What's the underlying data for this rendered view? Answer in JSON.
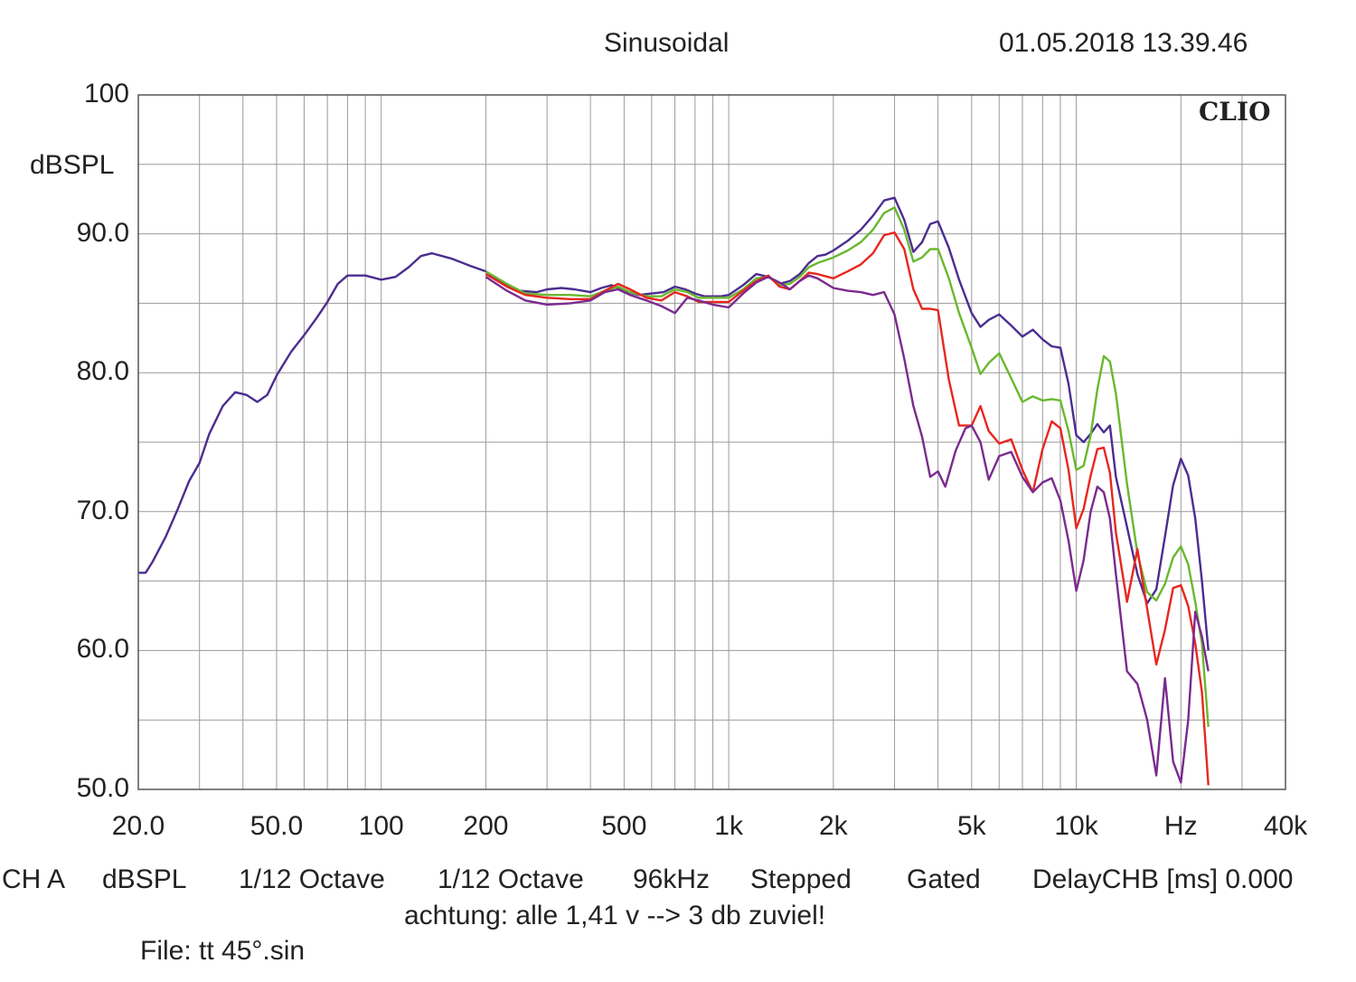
{
  "header": {
    "mode": "Sinusoidal",
    "datetime": "01.05.2018 13.39.46"
  },
  "brand": "CLIO",
  "footer": {
    "channel": "CH A",
    "unit": "dBSPL",
    "smoothing1": "1/12 Octave",
    "smoothing2": "1/12 Octave",
    "rate": "96kHz",
    "sweep": "Stepped",
    "window": "Gated",
    "delay": "DelayCHB [ms] 0.000",
    "note": "achtung: alle 1,41 v --> 3 db zuviel!",
    "file": "File: tt 45°.sin"
  },
  "chart_data": {
    "type": "line",
    "x_scale": "log",
    "xlim": [
      20,
      40000
    ],
    "ylim": [
      50,
      100
    ],
    "ylabel": "dBSPL",
    "y_ticks": [
      "100",
      "90.0",
      "80.0",
      "70.0",
      "60.0",
      "50.0"
    ],
    "x_ticks": [
      {
        "v": 20,
        "label": "20.0"
      },
      {
        "v": 50,
        "label": "50.0"
      },
      {
        "v": 100,
        "label": "100"
      },
      {
        "v": 200,
        "label": "200"
      },
      {
        "v": 500,
        "label": "500"
      },
      {
        "v": 1000,
        "label": "1k"
      },
      {
        "v": 2000,
        "label": "2k"
      },
      {
        "v": 5000,
        "label": "5k"
      },
      {
        "v": 10000,
        "label": "10k"
      },
      {
        "v": 20000,
        "label": "Hz"
      },
      {
        "v": 40000,
        "label": "40k"
      }
    ],
    "grid": true,
    "series": [
      {
        "color": "#4b2d8f",
        "points": [
          [
            20,
            65.6
          ],
          [
            21,
            65.6
          ],
          [
            22,
            66.4
          ],
          [
            24,
            68.2
          ],
          [
            26,
            70.2
          ],
          [
            28,
            72.2
          ],
          [
            30,
            73.5
          ],
          [
            32,
            75.6
          ],
          [
            35,
            77.6
          ],
          [
            38,
            78.6
          ],
          [
            41,
            78.4
          ],
          [
            44,
            77.9
          ],
          [
            47,
            78.4
          ],
          [
            50,
            79.8
          ],
          [
            55,
            81.5
          ],
          [
            60,
            82.7
          ],
          [
            65,
            83.9
          ],
          [
            70,
            85.1
          ],
          [
            75,
            86.4
          ],
          [
            80,
            87.0
          ],
          [
            90,
            87.0
          ],
          [
            100,
            86.7
          ],
          [
            110,
            86.9
          ],
          [
            120,
            87.6
          ],
          [
            130,
            88.4
          ],
          [
            140,
            88.6
          ],
          [
            160,
            88.2
          ],
          [
            180,
            87.7
          ],
          [
            200,
            87.3
          ],
          [
            220,
            86.6
          ],
          [
            250,
            85.9
          ],
          [
            280,
            85.8
          ],
          [
            300,
            86.0
          ],
          [
            330,
            86.1
          ],
          [
            360,
            86.0
          ],
          [
            400,
            85.8
          ],
          [
            430,
            86.1
          ],
          [
            460,
            86.3
          ],
          [
            500,
            85.9
          ],
          [
            550,
            85.6
          ],
          [
            600,
            85.7
          ],
          [
            650,
            85.8
          ],
          [
            700,
            86.2
          ],
          [
            750,
            86.0
          ],
          [
            800,
            85.7
          ],
          [
            850,
            85.5
          ],
          [
            900,
            85.5
          ],
          [
            950,
            85.5
          ],
          [
            1000,
            85.6
          ],
          [
            1100,
            86.3
          ],
          [
            1200,
            87.1
          ],
          [
            1300,
            86.9
          ],
          [
            1400,
            86.4
          ],
          [
            1500,
            86.6
          ],
          [
            1600,
            87.1
          ],
          [
            1700,
            87.9
          ],
          [
            1800,
            88.4
          ],
          [
            1900,
            88.5
          ],
          [
            2000,
            88.8
          ],
          [
            2200,
            89.5
          ],
          [
            2400,
            90.3
          ],
          [
            2600,
            91.3
          ],
          [
            2800,
            92.4
          ],
          [
            3000,
            92.6
          ],
          [
            3200,
            91.0
          ],
          [
            3400,
            88.7
          ],
          [
            3600,
            89.4
          ],
          [
            3800,
            90.7
          ],
          [
            4000,
            90.9
          ],
          [
            4300,
            89.0
          ],
          [
            4600,
            86.7
          ],
          [
            5000,
            84.3
          ],
          [
            5300,
            83.3
          ],
          [
            5600,
            83.8
          ],
          [
            6000,
            84.2
          ],
          [
            6500,
            83.4
          ],
          [
            7000,
            82.6
          ],
          [
            7500,
            83.1
          ],
          [
            8000,
            82.4
          ],
          [
            8500,
            81.9
          ],
          [
            9000,
            81.8
          ],
          [
            9500,
            79.2
          ],
          [
            10000,
            75.5
          ],
          [
            10500,
            75.0
          ],
          [
            11000,
            75.6
          ],
          [
            11500,
            76.3
          ],
          [
            12000,
            75.7
          ],
          [
            12500,
            76.2
          ],
          [
            13000,
            72.5
          ],
          [
            14000,
            68.9
          ],
          [
            15000,
            65.5
          ],
          [
            16000,
            63.4
          ],
          [
            17000,
            64.4
          ],
          [
            18000,
            68.2
          ],
          [
            19000,
            71.9
          ],
          [
            20000,
            73.8
          ],
          [
            21000,
            72.6
          ],
          [
            22000,
            69.5
          ],
          [
            23000,
            65.0
          ],
          [
            24000,
            60.0
          ]
        ]
      },
      {
        "color": "#6ab82f",
        "points": [
          [
            200,
            87.3
          ],
          [
            230,
            86.4
          ],
          [
            260,
            85.7
          ],
          [
            300,
            85.6
          ],
          [
            350,
            85.6
          ],
          [
            400,
            85.5
          ],
          [
            440,
            85.9
          ],
          [
            480,
            86.2
          ],
          [
            520,
            85.8
          ],
          [
            580,
            85.5
          ],
          [
            640,
            85.5
          ],
          [
            700,
            86.0
          ],
          [
            760,
            85.8
          ],
          [
            820,
            85.4
          ],
          [
            900,
            85.4
          ],
          [
            1000,
            85.4
          ],
          [
            1100,
            86.0
          ],
          [
            1200,
            86.8
          ],
          [
            1300,
            86.9
          ],
          [
            1400,
            86.3
          ],
          [
            1500,
            86.4
          ],
          [
            1600,
            86.9
          ],
          [
            1700,
            87.6
          ],
          [
            1800,
            87.9
          ],
          [
            2000,
            88.3
          ],
          [
            2200,
            88.8
          ],
          [
            2400,
            89.4
          ],
          [
            2600,
            90.3
          ],
          [
            2800,
            91.5
          ],
          [
            3000,
            91.9
          ],
          [
            3200,
            90.3
          ],
          [
            3400,
            88.0
          ],
          [
            3600,
            88.3
          ],
          [
            3800,
            88.9
          ],
          [
            4000,
            88.9
          ],
          [
            4300,
            86.8
          ],
          [
            4600,
            84.3
          ],
          [
            5000,
            81.8
          ],
          [
            5300,
            79.9
          ],
          [
            5600,
            80.7
          ],
          [
            6000,
            81.4
          ],
          [
            6500,
            79.6
          ],
          [
            7000,
            77.9
          ],
          [
            7500,
            78.3
          ],
          [
            8000,
            78.0
          ],
          [
            8500,
            78.1
          ],
          [
            9000,
            78.0
          ],
          [
            9500,
            75.8
          ],
          [
            10000,
            73.0
          ],
          [
            10500,
            73.3
          ],
          [
            11000,
            75.5
          ],
          [
            11500,
            78.8
          ],
          [
            12000,
            81.2
          ],
          [
            12500,
            80.8
          ],
          [
            13000,
            78.5
          ],
          [
            14000,
            72.0
          ],
          [
            15000,
            67.0
          ],
          [
            16000,
            64.2
          ],
          [
            17000,
            63.6
          ],
          [
            18000,
            64.8
          ],
          [
            19000,
            66.7
          ],
          [
            20000,
            67.5
          ],
          [
            21000,
            66.2
          ],
          [
            22000,
            63.5
          ],
          [
            23000,
            60.5
          ],
          [
            24000,
            54.5
          ]
        ]
      },
      {
        "color": "#e8261e",
        "points": [
          [
            200,
            87.1
          ],
          [
            230,
            86.2
          ],
          [
            260,
            85.6
          ],
          [
            300,
            85.4
          ],
          [
            350,
            85.3
          ],
          [
            400,
            85.3
          ],
          [
            440,
            85.9
          ],
          [
            480,
            86.4
          ],
          [
            520,
            86.0
          ],
          [
            580,
            85.4
          ],
          [
            640,
            85.2
          ],
          [
            700,
            85.8
          ],
          [
            760,
            85.5
          ],
          [
            820,
            85.1
          ],
          [
            900,
            85.1
          ],
          [
            1000,
            85.1
          ],
          [
            1100,
            85.9
          ],
          [
            1200,
            86.6
          ],
          [
            1300,
            87.0
          ],
          [
            1400,
            86.2
          ],
          [
            1500,
            86.0
          ],
          [
            1600,
            86.6
          ],
          [
            1700,
            87.2
          ],
          [
            1800,
            87.1
          ],
          [
            2000,
            86.8
          ],
          [
            2200,
            87.3
          ],
          [
            2400,
            87.8
          ],
          [
            2600,
            88.6
          ],
          [
            2800,
            89.9
          ],
          [
            3000,
            90.1
          ],
          [
            3200,
            88.9
          ],
          [
            3400,
            86.0
          ],
          [
            3600,
            84.6
          ],
          [
            3800,
            84.6
          ],
          [
            4000,
            84.5
          ],
          [
            4300,
            79.5
          ],
          [
            4600,
            76.2
          ],
          [
            5000,
            76.2
          ],
          [
            5300,
            77.6
          ],
          [
            5600,
            75.8
          ],
          [
            6000,
            74.9
          ],
          [
            6500,
            75.2
          ],
          [
            7000,
            73.0
          ],
          [
            7500,
            71.4
          ],
          [
            8000,
            74.5
          ],
          [
            8500,
            76.5
          ],
          [
            9000,
            76.0
          ],
          [
            9500,
            73.0
          ],
          [
            10000,
            68.8
          ],
          [
            10500,
            70.2
          ],
          [
            11000,
            72.6
          ],
          [
            11500,
            74.5
          ],
          [
            12000,
            74.6
          ],
          [
            12500,
            72.8
          ],
          [
            13000,
            68.5
          ],
          [
            14000,
            63.5
          ],
          [
            15000,
            67.3
          ],
          [
            16000,
            63.0
          ],
          [
            17000,
            59.0
          ],
          [
            18000,
            61.5
          ],
          [
            19000,
            64.5
          ],
          [
            20000,
            64.7
          ],
          [
            21000,
            63.2
          ],
          [
            22000,
            60.5
          ],
          [
            23000,
            57.0
          ],
          [
            24000,
            50.3
          ]
        ]
      },
      {
        "color": "#7b2a8f",
        "points": [
          [
            200,
            86.9
          ],
          [
            230,
            85.9
          ],
          [
            260,
            85.2
          ],
          [
            300,
            84.9
          ],
          [
            350,
            85.0
          ],
          [
            400,
            85.2
          ],
          [
            440,
            85.8
          ],
          [
            480,
            86.0
          ],
          [
            520,
            85.6
          ],
          [
            580,
            85.2
          ],
          [
            640,
            84.8
          ],
          [
            700,
            84.3
          ],
          [
            760,
            85.4
          ],
          [
            820,
            85.2
          ],
          [
            900,
            84.9
          ],
          [
            1000,
            84.7
          ],
          [
            1100,
            85.7
          ],
          [
            1200,
            86.5
          ],
          [
            1300,
            86.9
          ],
          [
            1400,
            86.5
          ],
          [
            1500,
            86.0
          ],
          [
            1600,
            86.6
          ],
          [
            1700,
            87.0
          ],
          [
            1800,
            86.8
          ],
          [
            2000,
            86.1
          ],
          [
            2200,
            85.9
          ],
          [
            2400,
            85.8
          ],
          [
            2600,
            85.6
          ],
          [
            2800,
            85.8
          ],
          [
            3000,
            84.2
          ],
          [
            3200,
            81.0
          ],
          [
            3400,
            77.6
          ],
          [
            3600,
            75.4
          ],
          [
            3800,
            72.5
          ],
          [
            4000,
            72.9
          ],
          [
            4200,
            71.8
          ],
          [
            4500,
            74.4
          ],
          [
            4800,
            76.0
          ],
          [
            5000,
            76.2
          ],
          [
            5300,
            75.0
          ],
          [
            5600,
            72.3
          ],
          [
            6000,
            74.0
          ],
          [
            6500,
            74.3
          ],
          [
            7000,
            72.5
          ],
          [
            7500,
            71.4
          ],
          [
            8000,
            72.1
          ],
          [
            8500,
            72.4
          ],
          [
            9000,
            70.8
          ],
          [
            9500,
            67.9
          ],
          [
            10000,
            64.3
          ],
          [
            10500,
            66.5
          ],
          [
            11000,
            70.0
          ],
          [
            11500,
            71.8
          ],
          [
            12000,
            71.4
          ],
          [
            12500,
            69.5
          ],
          [
            13000,
            65.5
          ],
          [
            14000,
            58.5
          ],
          [
            15000,
            57.6
          ],
          [
            16000,
            55.0
          ],
          [
            17000,
            51.0
          ],
          [
            18000,
            58.0
          ],
          [
            19000,
            52.0
          ],
          [
            20000,
            50.5
          ],
          [
            21000,
            55.0
          ],
          [
            22000,
            62.8
          ],
          [
            23000,
            61.0
          ],
          [
            24000,
            58.5
          ]
        ]
      }
    ]
  }
}
